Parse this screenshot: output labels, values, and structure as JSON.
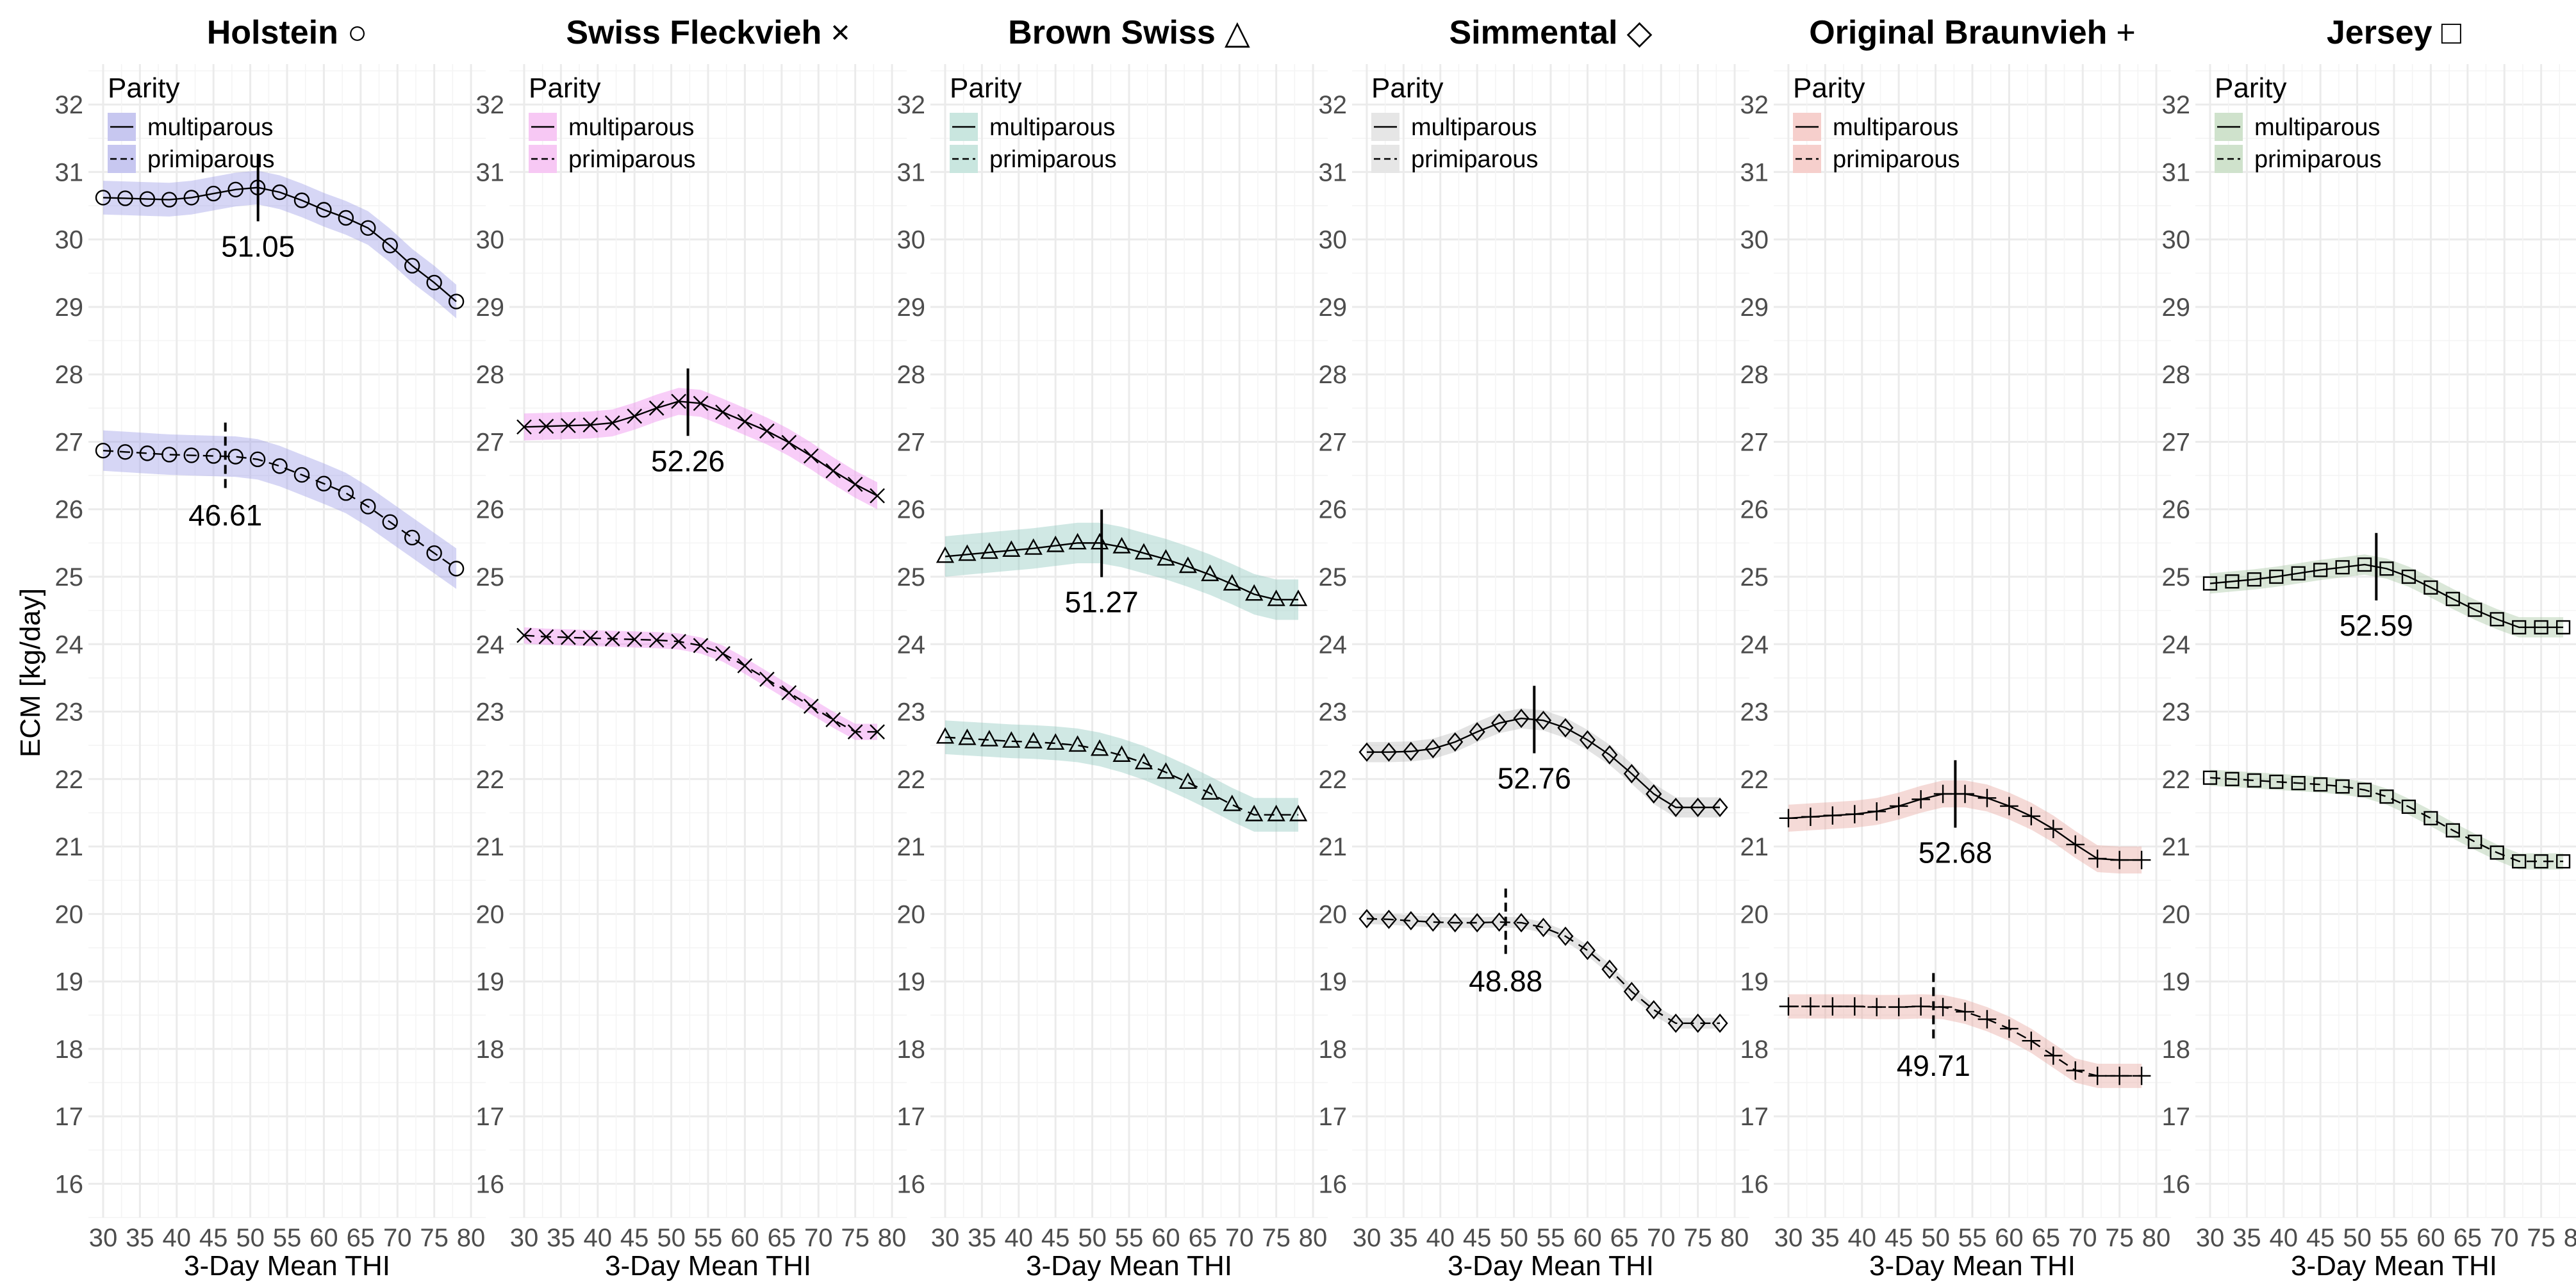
{
  "chart_data": {
    "type": "line",
    "ylabel": "ECM [kg/day]",
    "xlabel": "3-Day Mean THI",
    "xlim": [
      28,
      82
    ],
    "ylim": [
      15.5,
      32.6
    ],
    "x_ticks": [
      30,
      35,
      40,
      45,
      50,
      55,
      60,
      65,
      70,
      75,
      80
    ],
    "y_ticks": [
      16,
      17,
      18,
      19,
      20,
      21,
      22,
      23,
      24,
      25,
      26,
      27,
      28,
      29,
      30,
      31,
      32
    ],
    "legend_title": "Parity",
    "legend_labels": [
      "multiparous",
      "primiparous"
    ],
    "x": [
      30,
      33,
      36,
      39,
      42,
      45,
      48,
      51,
      54,
      57,
      60,
      63,
      66,
      69,
      72,
      75,
      78
    ],
    "panels": [
      {
        "title": "Holstein",
        "marker_glyph": "○",
        "marker": "circle",
        "fill": "#9e9ee8",
        "legend_fill": "#c7c7f0",
        "series": [
          {
            "name": "multiparous",
            "ci": 0.25,
            "values": [
              30.62,
              30.61,
              30.6,
              30.59,
              30.62,
              30.68,
              30.74,
              30.77,
              30.7,
              30.58,
              30.44,
              30.32,
              30.17,
              29.91,
              29.61,
              29.36,
              29.08
            ],
            "threshold": 51.05,
            "threshold_label": "51.05"
          },
          {
            "name": "primiparous",
            "ci": 0.3,
            "values": [
              26.87,
              26.85,
              26.83,
              26.81,
              26.8,
              26.79,
              26.78,
              26.74,
              26.64,
              26.51,
              26.38,
              26.24,
              26.04,
              25.81,
              25.58,
              25.35,
              25.12
            ],
            "threshold": 46.61,
            "threshold_label": "46.61"
          }
        ]
      },
      {
        "title": "Swiss Fleckvieh",
        "marker_glyph": "×",
        "marker": "x",
        "fill": "#ee88ee",
        "legend_fill": "#f7c8f4",
        "series": [
          {
            "name": "multiparous",
            "ci": 0.2,
            "values": [
              27.22,
              27.23,
              27.24,
              27.25,
              27.28,
              27.38,
              27.5,
              27.6,
              27.57,
              27.44,
              27.3,
              27.16,
              26.99,
              26.79,
              26.57,
              26.37,
              26.2
            ],
            "threshold": 52.26,
            "threshold_label": "52.26"
          },
          {
            "name": "primiparous",
            "ci": 0.12,
            "values": [
              24.13,
              24.11,
              24.1,
              24.09,
              24.08,
              24.07,
              24.06,
              24.04,
              23.98,
              23.86,
              23.68,
              23.48,
              23.28,
              23.08,
              22.88,
              22.7,
              22.7
            ],
            "threshold": null,
            "threshold_label": ""
          }
        ]
      },
      {
        "title": "Brown Swiss",
        "marker_glyph": "△",
        "marker": "triangle",
        "fill": "#8ec9bf",
        "legend_fill": "#c9e6df",
        "series": [
          {
            "name": "multiparous",
            "ci": 0.3,
            "values": [
              25.3,
              25.33,
              25.36,
              25.39,
              25.42,
              25.46,
              25.5,
              25.5,
              25.44,
              25.35,
              25.26,
              25.15,
              25.03,
              24.89,
              24.74,
              24.66,
              24.66
            ],
            "threshold": 51.27,
            "threshold_label": "51.27"
          },
          {
            "name": "primiparous",
            "ci": 0.25,
            "values": [
              22.62,
              22.6,
              22.58,
              22.56,
              22.55,
              22.53,
              22.5,
              22.44,
              22.35,
              22.24,
              22.1,
              21.95,
              21.79,
              21.62,
              21.47,
              21.47,
              21.47
            ],
            "threshold": null,
            "threshold_label": ""
          }
        ]
      },
      {
        "title": "Simmental",
        "marker_glyph": "◇",
        "marker": "diamond",
        "fill": "#bdbdbd",
        "legend_fill": "#e6e6e6",
        "series": [
          {
            "name": "multiparous",
            "ci": 0.15,
            "values": [
              22.4,
              22.4,
              22.41,
              22.45,
              22.55,
              22.7,
              22.83,
              22.9,
              22.87,
              22.76,
              22.58,
              22.36,
              22.08,
              21.78,
              21.58,
              21.58,
              21.58
            ],
            "threshold": 52.76,
            "threshold_label": "52.76"
          },
          {
            "name": "primiparous",
            "ci": 0.08,
            "values": [
              19.93,
              19.92,
              19.9,
              19.88,
              19.87,
              19.87,
              19.88,
              19.87,
              19.8,
              19.67,
              19.46,
              19.18,
              18.85,
              18.58,
              18.38,
              18.38,
              18.38
            ],
            "threshold": 48.88,
            "threshold_label": "48.88"
          }
        ]
      },
      {
        "title": "Original Braunvieh",
        "marker_glyph": "+",
        "marker": "plus",
        "fill": "#e8a6a0",
        "legend_fill": "#f6cfcc",
        "series": [
          {
            "name": "multiparous",
            "ci": 0.2,
            "values": [
              21.42,
              21.44,
              21.46,
              21.48,
              21.52,
              21.6,
              21.7,
              21.78,
              21.78,
              21.72,
              21.6,
              21.45,
              21.26,
              21.03,
              20.82,
              20.8,
              20.8
            ],
            "threshold": 52.68,
            "threshold_label": "52.68"
          },
          {
            "name": "primiparous",
            "ci": 0.18,
            "values": [
              18.63,
              18.63,
              18.63,
              18.63,
              18.62,
              18.62,
              18.63,
              18.62,
              18.55,
              18.44,
              18.3,
              18.12,
              17.9,
              17.68,
              17.6,
              17.6,
              17.6
            ],
            "threshold": 49.71,
            "threshold_label": "49.71"
          }
        ]
      },
      {
        "title": "Jersey",
        "marker_glyph": "□",
        "marker": "square",
        "fill": "#a6c6a2",
        "legend_fill": "#cfe2cc",
        "series": [
          {
            "name": "multiparous",
            "ci": 0.15,
            "values": [
              24.9,
              24.93,
              24.96,
              25.0,
              25.05,
              25.1,
              25.14,
              25.18,
              25.12,
              25.0,
              24.84,
              24.67,
              24.51,
              24.37,
              24.25,
              24.25,
              24.25
            ],
            "threshold": 52.59,
            "threshold_label": "52.59"
          },
          {
            "name": "primiparous",
            "ci": 0.12,
            "values": [
              22.02,
              22.0,
              21.98,
              21.96,
              21.94,
              21.92,
              21.89,
              21.84,
              21.74,
              21.59,
              21.42,
              21.24,
              21.07,
              20.91,
              20.78,
              20.78,
              20.78
            ],
            "threshold": null,
            "threshold_label": ""
          }
        ]
      }
    ]
  }
}
